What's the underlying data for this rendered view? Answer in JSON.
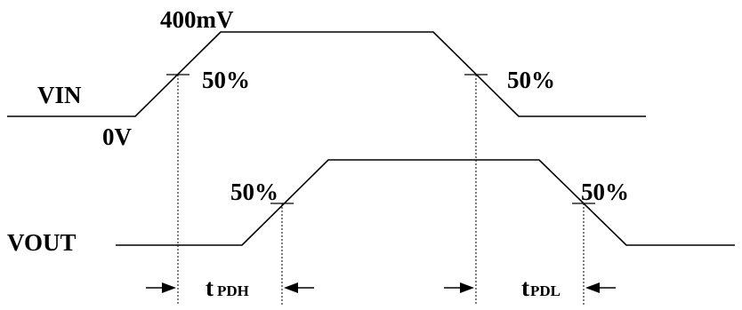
{
  "labels": {
    "vin": "VIN",
    "vout": "VOUT",
    "zero_volt": "0V",
    "peak_volt": "400mV",
    "pct_vin_rise": "50%",
    "pct_vin_fall": "50%",
    "pct_vout_rise": "50%",
    "pct_vout_fall": "50%",
    "tpdh_t": "t",
    "tpdh_sub": "PDH",
    "tpdl_t": "t",
    "tpdl_sub": "PDL"
  }
}
